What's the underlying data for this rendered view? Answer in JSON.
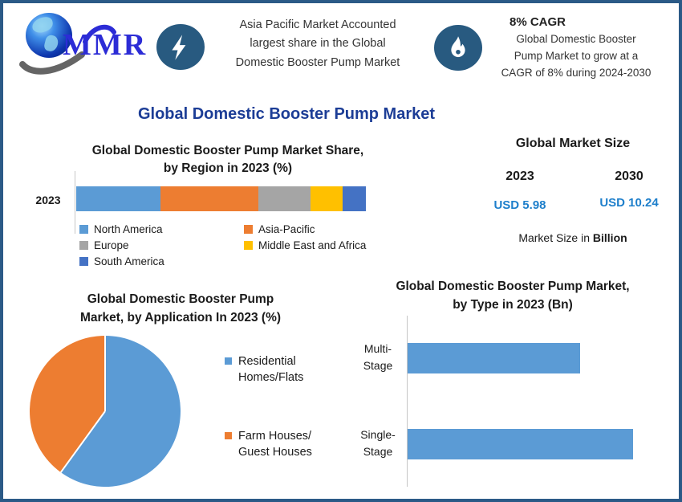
{
  "brand": {
    "logo_text": "MMR"
  },
  "colors": {
    "border": "#2b5a87",
    "icon_circle": "#285a80",
    "title_blue": "#1c3d96",
    "usd_blue": "#1e7fcb",
    "chart_blue": "#5B9BD5",
    "chart_orange": "#ED7D31",
    "chart_gray": "#A5A5A5",
    "chart_yellow": "#FFC000",
    "chart_darkblue": "#4472C4"
  },
  "header": {
    "box1": {
      "icon": "lightning-bolt-icon",
      "lines": [
        "Asia Pacific Market Accounted",
        "largest share in the Global",
        "Domestic Booster Pump Market"
      ]
    },
    "box2": {
      "icon": "flame-icon",
      "heading": "8% CAGR",
      "lines": [
        "Global Domestic Booster",
        "Pump Market to grow at a",
        "CAGR of 8% during 2024-2030"
      ]
    }
  },
  "main_title": "Global Domestic Booster Pump Market",
  "market_size": {
    "title": "Global Market Size",
    "col1": {
      "year": "2023",
      "value": "USD 5.98"
    },
    "col2": {
      "year": "2030",
      "value": "USD 10.24"
    },
    "note_prefix": "Market Size in ",
    "note_bold": "Billion"
  },
  "chart_data": [
    {
      "type": "bar",
      "variant": "horizontal-stacked",
      "title": "Global Domestic Booster Pump Market Share, by Region in 2023 (%)",
      "title_lines": [
        "Global Domestic Booster Pump Market Share,",
        "by Region in 2023 (%)"
      ],
      "categories": [
        "2023"
      ],
      "unit": "%",
      "xlim": [
        0,
        100
      ],
      "legend_position": "bottom",
      "series": [
        {
          "name": "North America",
          "value": 29,
          "color": "#5B9BD5"
        },
        {
          "name": "Asia-Pacific",
          "value": 34,
          "color": "#ED7D31"
        },
        {
          "name": "Europe",
          "value": 18,
          "color": "#A5A5A5"
        },
        {
          "name": "Middle East and Africa",
          "value": 11,
          "color": "#FFC000"
        },
        {
          "name": "South America",
          "value": 8,
          "color": "#4472C4"
        }
      ]
    },
    {
      "type": "pie",
      "title": "Global Domestic Booster Pump Market, by Application In 2023 (%)",
      "title_lines": [
        "Global Domestic Booster Pump",
        "Market, by Application In 2023 (%)"
      ],
      "start_angle_deg": 0,
      "legend_position": "right",
      "slices": [
        {
          "label": "Residential Homes/Flats",
          "label_lines": [
            "Residential",
            "Homes/Flats"
          ],
          "value": 60,
          "color": "#5B9BD5"
        },
        {
          "label": "Farm Houses/Guest Houses",
          "label_lines": [
            "Farm Houses/",
            "Guest Houses"
          ],
          "value": 40,
          "color": "#ED7D31"
        }
      ]
    },
    {
      "type": "bar",
      "variant": "horizontal",
      "title": "Global Domestic Booster Pump Market, by Type in 2023 (Bn)",
      "title_lines": [
        "Global Domestic Booster Pump Market,",
        "by Type in 2023 (Bn)"
      ],
      "categories": [
        "Multi-Stage",
        "Single-Stage"
      ],
      "category_lines": [
        [
          "Multi-",
          "Stage"
        ],
        [
          "Single-",
          "Stage"
        ]
      ],
      "values": [
        2.6,
        3.4
      ],
      "xlim": [
        0,
        4
      ],
      "unit": "Bn",
      "bar_color": "#5B9BD5"
    }
  ]
}
